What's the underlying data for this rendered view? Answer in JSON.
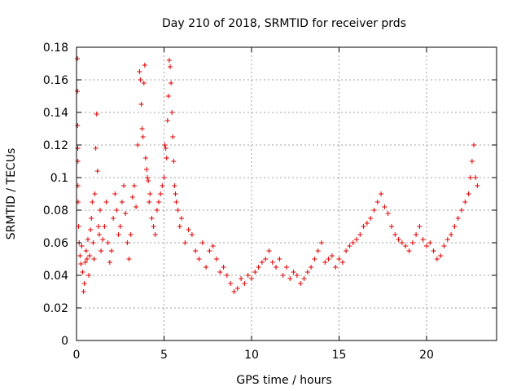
{
  "chart_data": {
    "type": "scatter",
    "title": "Day 210 of 2018, SRMTID for receiver prds",
    "xlabel": "GPS time / hours",
    "ylabel": "SRMTID / TECUs",
    "xlim": [
      0,
      24
    ],
    "ylim": [
      0,
      0.18
    ],
    "xticks": [
      0,
      5,
      10,
      15,
      20
    ],
    "xtick_labels": [
      "0",
      "5",
      "10",
      "15",
      "20"
    ],
    "yticks": [
      0,
      0.02,
      0.04,
      0.06,
      0.08,
      0.1,
      0.12,
      0.14,
      0.16,
      0.18
    ],
    "ytick_labels": [
      "0",
      "0.02",
      "0.04",
      "0.06",
      "0.08",
      "0.1",
      "0.12",
      "0.14",
      "0.16",
      "0.18"
    ],
    "grid": true,
    "marker": "+",
    "color": "#e00000",
    "series": [
      {
        "name": "SRMTID",
        "x": [
          0.05,
          0.05,
          0.06,
          0.07,
          0.08,
          0.08,
          0.09,
          0.12,
          0.15,
          0.2,
          0.25,
          0.3,
          0.35,
          0.4,
          0.45,
          0.5,
          0.55,
          0.6,
          0.65,
          0.7,
          0.75,
          0.8,
          0.85,
          0.9,
          0.95,
          1.0,
          1.05,
          1.1,
          1.15,
          1.2,
          1.25,
          1.3,
          1.35,
          1.4,
          1.5,
          1.6,
          1.7,
          1.8,
          1.9,
          2.0,
          2.1,
          2.2,
          2.3,
          2.4,
          2.5,
          2.6,
          2.7,
          2.8,
          2.9,
          3.0,
          3.1,
          3.2,
          3.3,
          3.4,
          3.5,
          3.6,
          3.65,
          3.7,
          3.75,
          3.8,
          3.85,
          3.9,
          3.95,
          4.0,
          4.05,
          4.1,
          4.15,
          4.2,
          4.3,
          4.4,
          4.5,
          4.6,
          4.7,
          4.8,
          4.9,
          5.0,
          5.05,
          5.1,
          5.15,
          5.2,
          5.25,
          5.3,
          5.35,
          5.4,
          5.45,
          5.5,
          5.55,
          5.6,
          5.65,
          5.7,
          5.8,
          5.9,
          6.0,
          6.2,
          6.4,
          6.6,
          6.8,
          7.0,
          7.2,
          7.4,
          7.6,
          7.8,
          8.0,
          8.2,
          8.4,
          8.6,
          8.8,
          9.0,
          9.2,
          9.4,
          9.6,
          9.8,
          10.0,
          10.2,
          10.4,
          10.6,
          10.8,
          11.0,
          11.2,
          11.4,
          11.6,
          11.8,
          12.0,
          12.2,
          12.4,
          12.6,
          12.8,
          13.0,
          13.2,
          13.4,
          13.6,
          13.8,
          14.0,
          14.2,
          14.4,
          14.6,
          14.8,
          15.0,
          15.2,
          15.4,
          15.6,
          15.8,
          16.0,
          16.2,
          16.4,
          16.6,
          16.8,
          17.0,
          17.2,
          17.4,
          17.6,
          17.8,
          18.0,
          18.2,
          18.4,
          18.6,
          18.8,
          19.0,
          19.2,
          19.4,
          19.6,
          19.8,
          20.0,
          20.2,
          20.4,
          20.6,
          20.8,
          21.0,
          21.2,
          21.4,
          21.6,
          21.8,
          22.0,
          22.2,
          22.4,
          22.5,
          22.6,
          22.7,
          22.8,
          22.9
        ],
        "y": [
          0.173,
          0.153,
          0.132,
          0.118,
          0.11,
          0.095,
          0.085,
          0.07,
          0.06,
          0.052,
          0.047,
          0.058,
          0.042,
          0.03,
          0.035,
          0.048,
          0.055,
          0.05,
          0.062,
          0.04,
          0.052,
          0.068,
          0.075,
          0.085,
          0.06,
          0.05,
          0.09,
          0.118,
          0.139,
          0.104,
          0.07,
          0.065,
          0.08,
          0.055,
          0.062,
          0.07,
          0.085,
          0.06,
          0.048,
          0.055,
          0.075,
          0.09,
          0.08,
          0.065,
          0.07,
          0.085,
          0.095,
          0.078,
          0.06,
          0.05,
          0.065,
          0.088,
          0.095,
          0.082,
          0.12,
          0.165,
          0.16,
          0.145,
          0.13,
          0.125,
          0.158,
          0.169,
          0.112,
          0.105,
          0.1,
          0.098,
          0.085,
          0.09,
          0.075,
          0.07,
          0.065,
          0.08,
          0.085,
          0.09,
          0.095,
          0.1,
          0.12,
          0.118,
          0.112,
          0.135,
          0.15,
          0.172,
          0.168,
          0.158,
          0.14,
          0.125,
          0.11,
          0.095,
          0.09,
          0.085,
          0.08,
          0.07,
          0.075,
          0.06,
          0.068,
          0.065,
          0.055,
          0.05,
          0.06,
          0.045,
          0.055,
          0.058,
          0.05,
          0.042,
          0.045,
          0.04,
          0.035,
          0.03,
          0.032,
          0.038,
          0.035,
          0.04,
          0.038,
          0.042,
          0.045,
          0.048,
          0.05,
          0.055,
          0.048,
          0.045,
          0.05,
          0.04,
          0.045,
          0.038,
          0.042,
          0.04,
          0.035,
          0.038,
          0.042,
          0.045,
          0.05,
          0.055,
          0.06,
          0.048,
          0.05,
          0.052,
          0.045,
          0.05,
          0.048,
          0.055,
          0.058,
          0.06,
          0.062,
          0.065,
          0.07,
          0.072,
          0.075,
          0.08,
          0.085,
          0.09,
          0.082,
          0.078,
          0.07,
          0.065,
          0.062,
          0.06,
          0.058,
          0.055,
          0.06,
          0.065,
          0.07,
          0.062,
          0.058,
          0.06,
          0.055,
          0.05,
          0.052,
          0.058,
          0.062,
          0.065,
          0.07,
          0.075,
          0.08,
          0.085,
          0.09,
          0.1,
          0.11,
          0.12,
          0.1,
          0.095
        ]
      }
    ]
  }
}
